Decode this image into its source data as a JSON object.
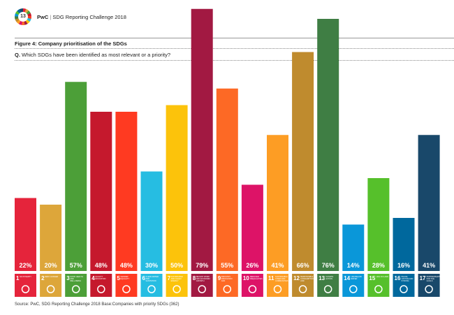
{
  "header": {
    "logo_number": "13",
    "brand": "PwC",
    "report_title": "SDG Reporting Challenge 2018"
  },
  "chart_data": {
    "type": "bar",
    "title": "Figure 4: Company prioritisation of the SDGs",
    "subtitle_prefix": "Q.",
    "subtitle": "Which SDGs have been identified as most relevant or a priority?",
    "categories": [
      "1 No poverty",
      "2 Zero hunger",
      "3 Good health and well-being",
      "4 Quality education",
      "5 Gender equality",
      "6 Clean water and sanitation",
      "7 Affordable and clean energy",
      "8 Decent work and economic growth",
      "9 Industry, innovation and infrastructure",
      "10 Reduced inequalities",
      "11 Sustainable cities and communities",
      "12 Responsible consumption and production",
      "13 Climate action",
      "14 Life below water",
      "15 Life on land",
      "16 Peace, justice and strong institutions",
      "17 Partnerships for the goals"
    ],
    "numbers": [
      "1",
      "2",
      "3",
      "4",
      "5",
      "6",
      "7",
      "8",
      "9",
      "10",
      "11",
      "12",
      "13",
      "14",
      "15",
      "16",
      "17"
    ],
    "short_labels": [
      "NO POVERTY",
      "ZERO HUNGER",
      "GOOD HEALTH AND WELL-BEING",
      "QUALITY EDUCATION",
      "GENDER EQUALITY",
      "CLEAN WATER AND SANITATION",
      "AFFORDABLE AND CLEAN ENERGY",
      "DECENT WORK AND ECONOMIC GROWTH",
      "INDUSTRY, INNOVATION AND INFRASTRUCTURE",
      "REDUCED INEQUALITIES",
      "SUSTAINABLE CITIES AND COMMUNITIES",
      "RESPONSIBLE CONSUMPTION AND PRODUCTION",
      "CLIMATE ACTION",
      "LIFE BELOW WATER",
      "LIFE ON LAND",
      "PEACE, JUSTICE AND STRONG INSTITUTIONS",
      "PARTNERSHIPS FOR THE GOALS"
    ],
    "values": [
      22,
      20,
      57,
      48,
      48,
      30,
      50,
      79,
      55,
      26,
      41,
      66,
      76,
      14,
      28,
      16,
      41
    ],
    "value_labels": [
      "22%",
      "20%",
      "57%",
      "48%",
      "48%",
      "30%",
      "50%",
      "79%",
      "55%",
      "26%",
      "41%",
      "66%",
      "76%",
      "14%",
      "28%",
      "16%",
      "41%"
    ],
    "colors": [
      "#E5243B",
      "#DDA63A",
      "#4C9F38",
      "#C5192D",
      "#FF3A21",
      "#26BDE2",
      "#FCC30B",
      "#A21942",
      "#FD6925",
      "#DD1367",
      "#FD9D24",
      "#BF8B2E",
      "#3F7E44",
      "#0A97D9",
      "#56C02B",
      "#00689D",
      "#19486A"
    ],
    "ylim": [
      0,
      100
    ],
    "unit": "%",
    "grid": false,
    "legend": "none"
  },
  "footer": {
    "source": "Source: PwC, SDG Reporting Challenge 2018  Base:Companies with priority SDGs (362)"
  }
}
